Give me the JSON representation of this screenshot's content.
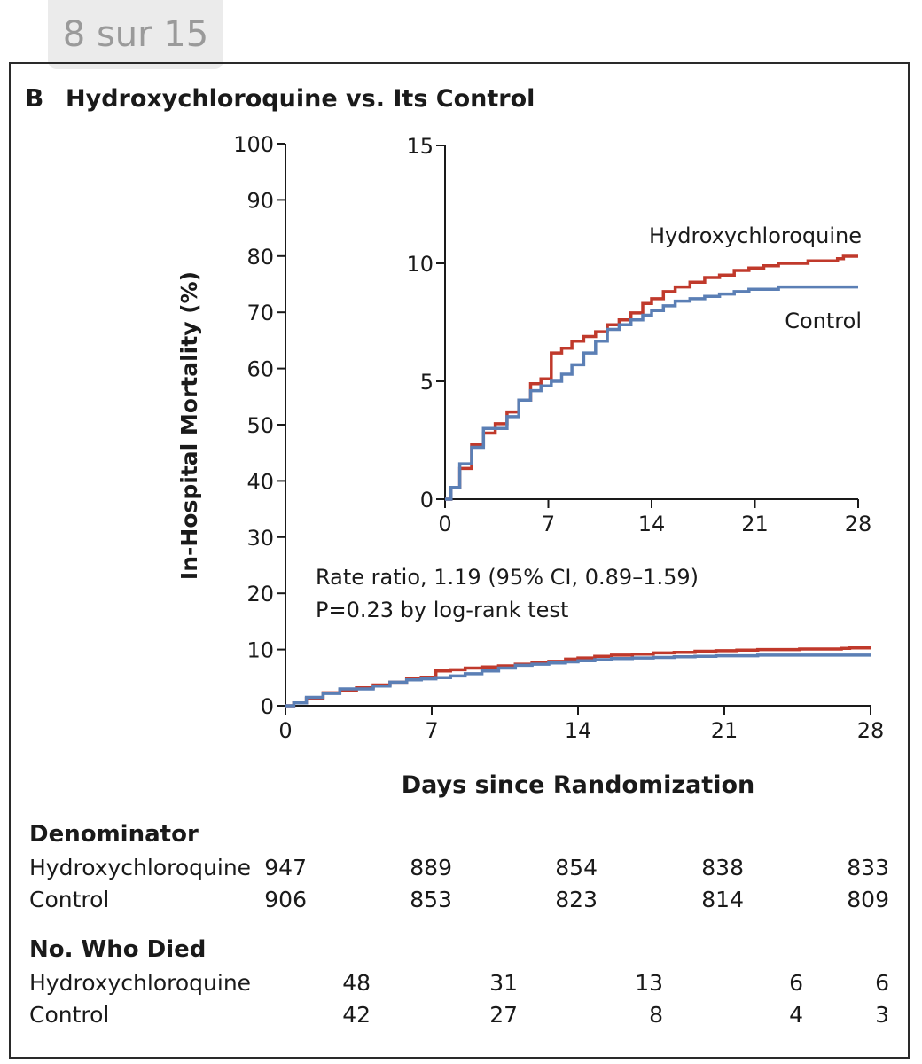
{
  "page_indicator": "8 sur 15",
  "panel": {
    "letter": "B",
    "title": "Hydroxychloroquine vs. Its Control"
  },
  "colors": {
    "hydroxychloroquine": "#c0392b",
    "control": "#5b7fb5",
    "axis": "#1a1a1a"
  },
  "chart_data": [
    {
      "type": "line",
      "role": "main",
      "xlabel": "Days since Randomization",
      "ylabel": "In-Hospital Mortality (%)",
      "xlim": [
        0,
        28
      ],
      "ylim": [
        0,
        100
      ],
      "xticks": [
        0,
        7,
        14,
        21,
        28
      ],
      "yticks": [
        0,
        10,
        20,
        30,
        40,
        50,
        60,
        70,
        80,
        90,
        100
      ],
      "annotations": [
        "Rate ratio, 1.19 (95% CI, 0.89–1.59)",
        "P=0.23 by log-rank test"
      ],
      "series": [
        {
          "name": "Hydroxychloroquine",
          "step": true,
          "x": [
            0,
            0.4,
            1.0,
            1.8,
            2.6,
            3.4,
            4.2,
            5.0,
            5.8,
            6.5,
            7.2,
            7.9,
            8.6,
            9.4,
            10.2,
            11.0,
            11.8,
            12.6,
            13.4,
            14.0,
            14.8,
            15.6,
            16.6,
            17.6,
            18.6,
            19.6,
            20.6,
            21.6,
            22.6,
            23.6,
            24.6,
            25.6,
            26.6,
            27.0,
            28.0
          ],
          "y": [
            0,
            0.5,
            1.3,
            2.3,
            2.8,
            3.2,
            3.7,
            4.2,
            4.9,
            5.1,
            6.2,
            6.4,
            6.7,
            6.9,
            7.1,
            7.4,
            7.6,
            7.9,
            8.3,
            8.5,
            8.8,
            9.0,
            9.2,
            9.4,
            9.5,
            9.7,
            9.8,
            9.9,
            10.0,
            10.0,
            10.1,
            10.1,
            10.2,
            10.3,
            10.3
          ]
        },
        {
          "name": "Control",
          "step": true,
          "x": [
            0,
            0.4,
            1.0,
            1.8,
            2.6,
            3.4,
            4.2,
            5.0,
            5.8,
            6.5,
            7.2,
            7.9,
            8.6,
            9.4,
            10.2,
            11.0,
            11.8,
            12.6,
            13.4,
            14.0,
            14.8,
            15.6,
            16.6,
            17.6,
            18.6,
            19.6,
            20.6,
            21.6,
            22.6,
            23.6,
            24.6,
            25.6,
            26.6,
            27.0,
            28.0
          ],
          "y": [
            0,
            0.5,
            1.5,
            2.2,
            3.0,
            3.0,
            3.5,
            4.2,
            4.6,
            4.8,
            5.0,
            5.3,
            5.7,
            6.2,
            6.7,
            7.2,
            7.4,
            7.6,
            7.8,
            8.0,
            8.2,
            8.4,
            8.5,
            8.6,
            8.7,
            8.8,
            8.9,
            8.9,
            9.0,
            9.0,
            9.0,
            9.0,
            9.0,
            9.0,
            9.0
          ]
        }
      ]
    },
    {
      "type": "line",
      "role": "inset",
      "xlim": [
        0,
        28
      ],
      "ylim": [
        0,
        15
      ],
      "xticks": [
        0,
        7,
        14,
        21,
        28
      ],
      "yticks": [
        0,
        5,
        10,
        15
      ],
      "series_labels": [
        "Hydroxychloroquine",
        "Control"
      ]
    }
  ],
  "table": {
    "denominator_heading": "Denominator",
    "deaths_heading": "No. Who Died",
    "rows": {
      "denominator": [
        {
          "label": "Hydroxychloroquine",
          "values": [
            "947",
            "889",
            "854",
            "838",
            "833"
          ]
        },
        {
          "label": "Control",
          "values": [
            "906",
            "853",
            "823",
            "814",
            "809"
          ]
        }
      ],
      "deaths": [
        {
          "label": "Hydroxychloroquine",
          "values": [
            "48",
            "31",
            "13",
            "6",
            "6"
          ]
        },
        {
          "label": "Control",
          "values": [
            "42",
            "27",
            "8",
            "4",
            "3"
          ]
        }
      ]
    }
  }
}
